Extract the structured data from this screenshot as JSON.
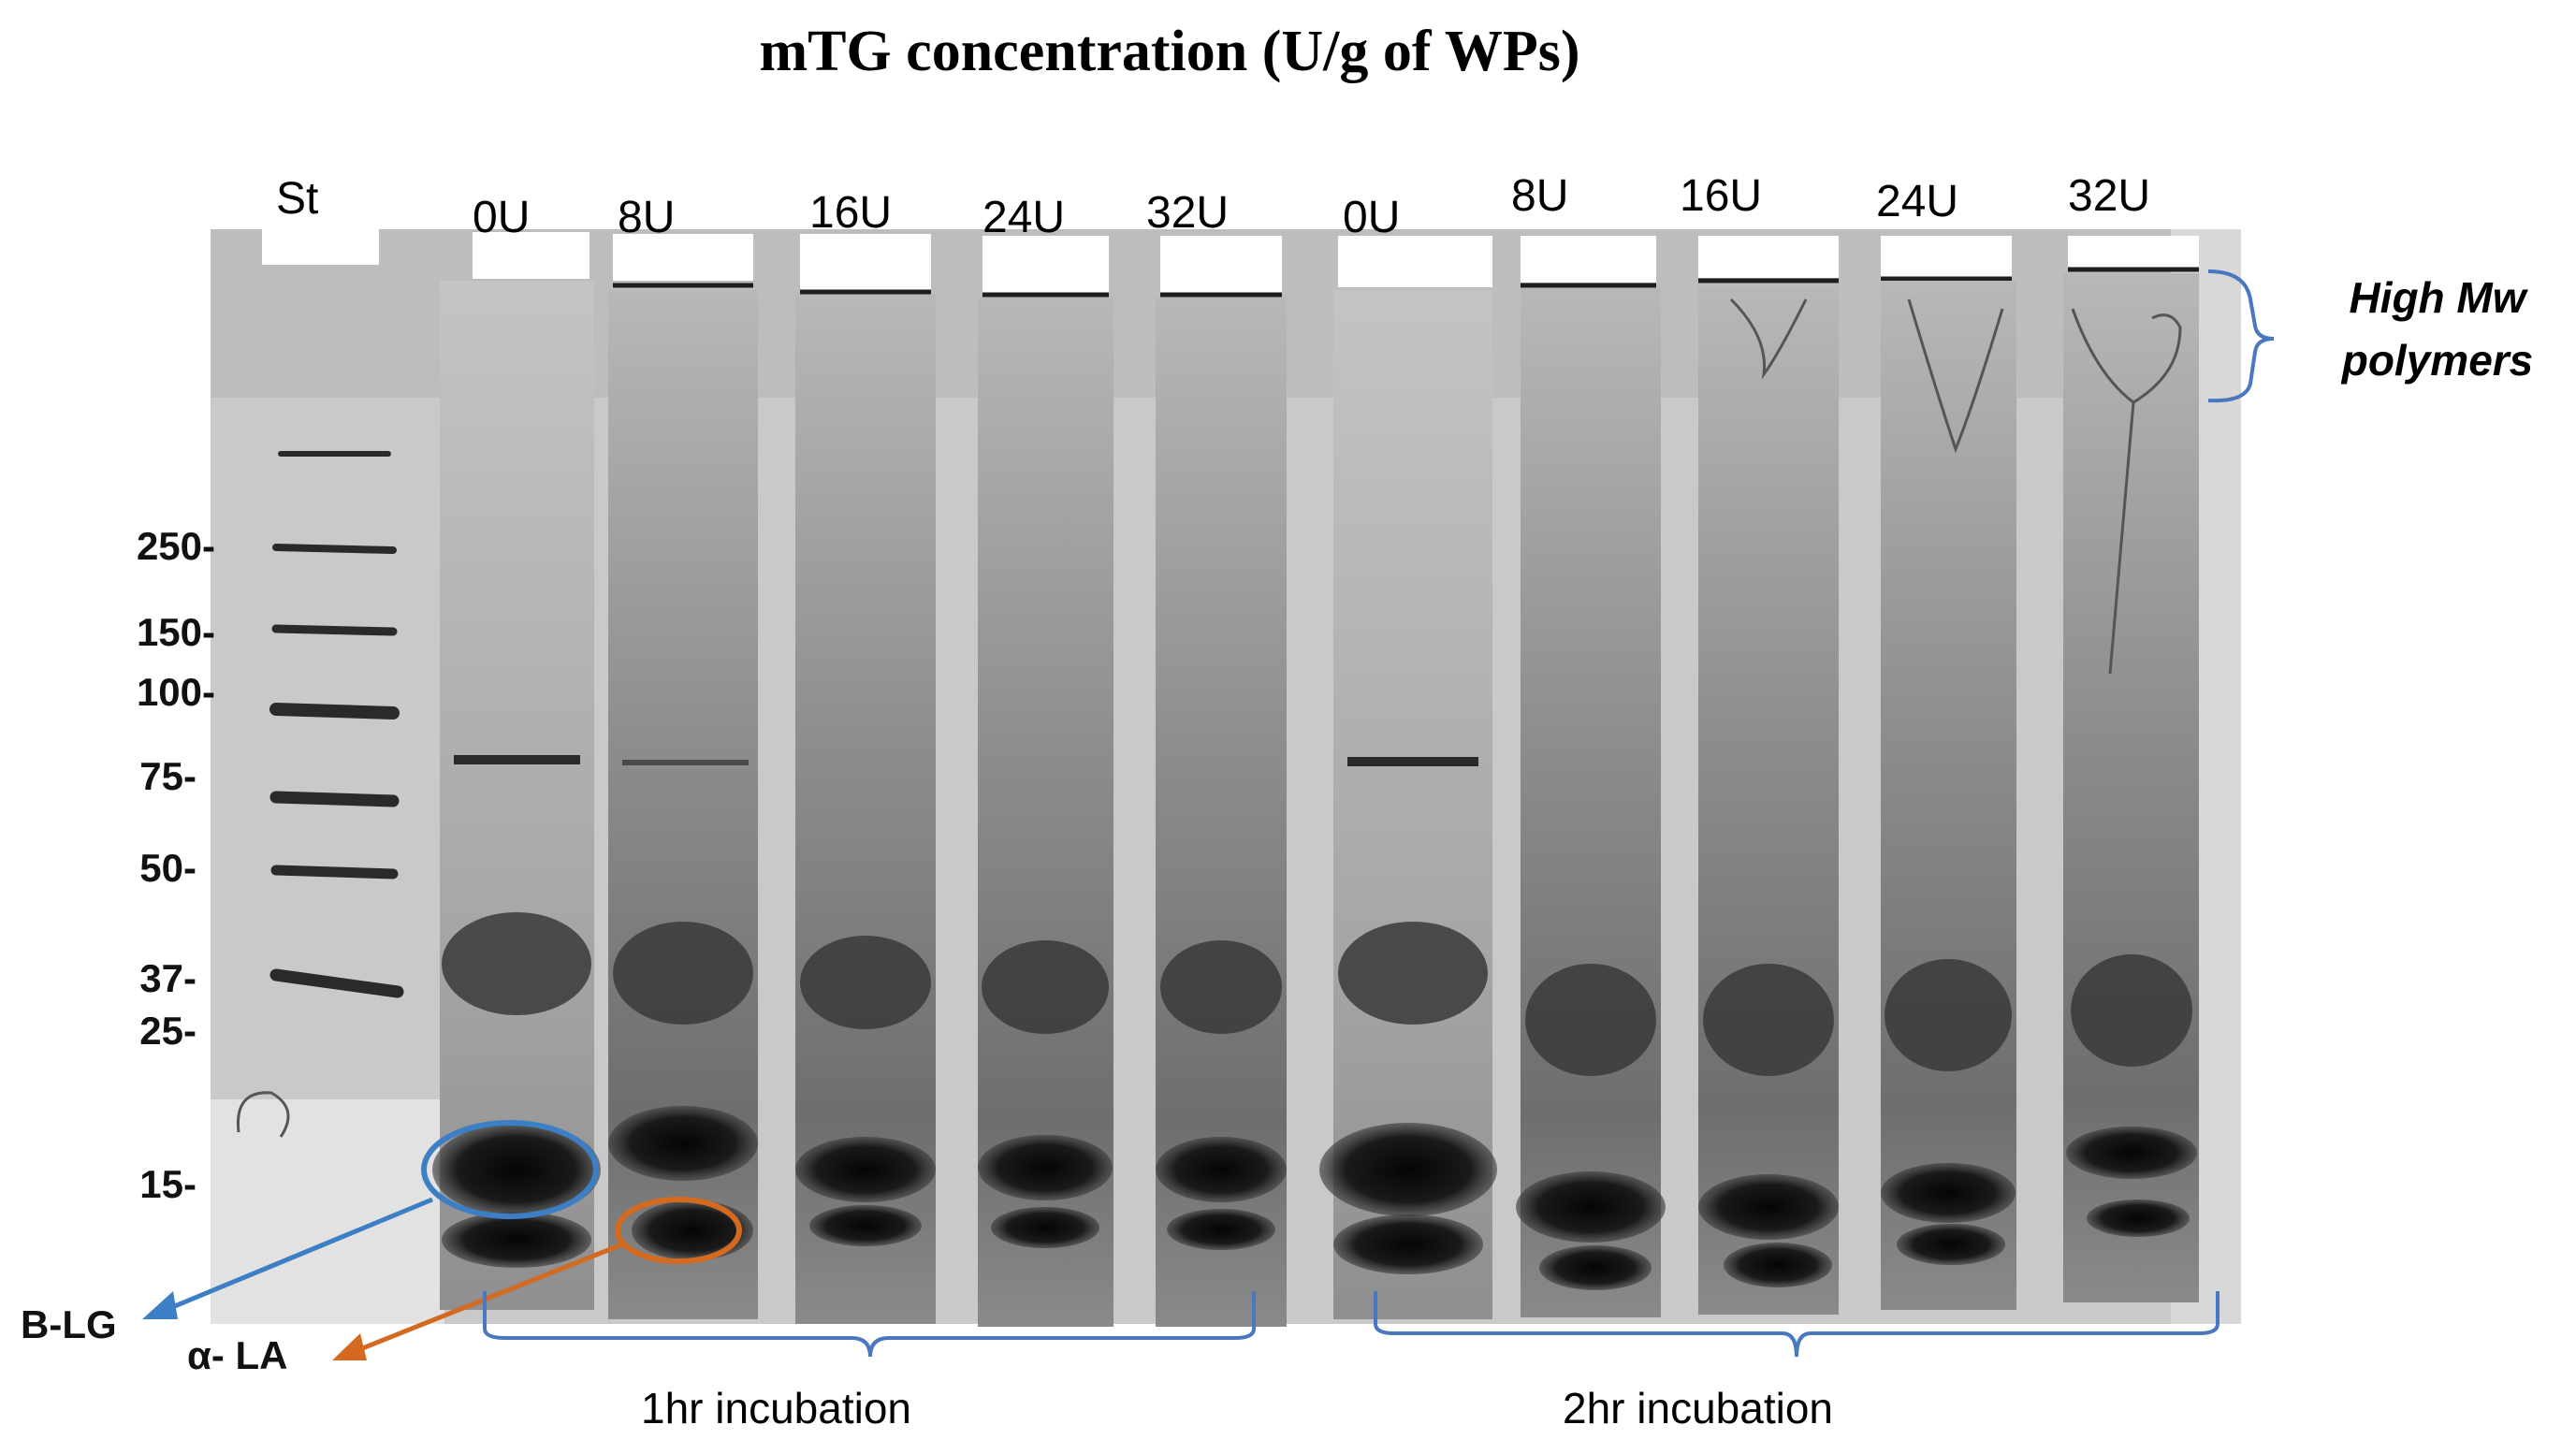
{
  "title": "mTG concentration (U/g of WPs)",
  "lanes": [
    "St",
    "0U",
    "8U",
    "16U",
    "24U",
    "32U",
    "0U",
    "8U",
    "16U",
    "24U",
    "32U"
  ],
  "markers": [
    "250-",
    "150-",
    "100-",
    "75-",
    "50-",
    "37-",
    "25-",
    "15-"
  ],
  "annotations": {
    "high_mw": [
      "High Mw",
      "polymers"
    ],
    "blg": "B-LG",
    "ala": "α- LA",
    "incubation_1": "1hr incubation",
    "incubation_2": "2hr incubation"
  },
  "colors": {
    "gel_background": "#c9c9c9",
    "band_dark": "#141414",
    "bracket_blue": "#4a78c0",
    "blg_circle": "#3d7fc4",
    "ala_circle": "#d46a1f"
  }
}
